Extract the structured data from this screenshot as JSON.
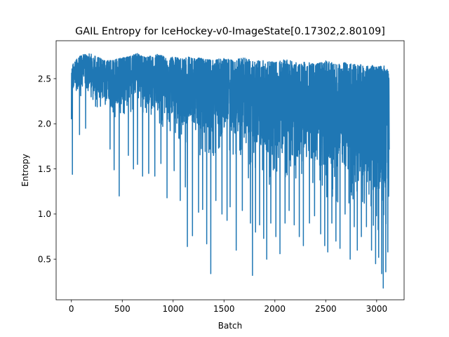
{
  "chart_data": {
    "type": "line",
    "title": "GAIL Entropy for IceHockey-v0-ImageState[0.17302,2.80109]",
    "xlabel": "Batch",
    "ylabel": "Entropy",
    "xlim": [
      -150,
      3270
    ],
    "ylim": [
      0.05,
      2.92
    ],
    "xticks": [
      0,
      500,
      1000,
      1500,
      2000,
      2500,
      3000
    ],
    "xtick_labels": [
      "0",
      "500",
      "1000",
      "1500",
      "2000",
      "2500",
      "3000"
    ],
    "yticks": [
      0.5,
      1.0,
      1.5,
      2.0,
      2.5
    ],
    "ytick_labels": [
      "0.5",
      "1.0",
      "1.5",
      "2.0",
      "2.5"
    ],
    "grid": false,
    "legend": "none",
    "n_points": 3125,
    "series": [
      {
        "color": "#1f77b4",
        "anchors_x": [
          0,
          10,
          50,
          100,
          150,
          200,
          250,
          300,
          350,
          400,
          450,
          500,
          550,
          600,
          650,
          700,
          750,
          800,
          850,
          900,
          950,
          1000,
          1050,
          1100,
          1150,
          1200,
          1250,
          1300,
          1350,
          1400,
          1450,
          1500,
          1550,
          1600,
          1650,
          1700,
          1750,
          1800,
          1850,
          1900,
          1950,
          2000,
          2050,
          2100,
          2150,
          2200,
          2250,
          2300,
          2350,
          2400,
          2450,
          2500,
          2550,
          2600,
          2650,
          2700,
          2750,
          2800,
          2850,
          2900,
          2950,
          3000,
          3050,
          3100,
          3124
        ],
        "anchors_upper": [
          2.55,
          2.65,
          2.72,
          2.76,
          2.78,
          2.77,
          2.74,
          2.72,
          2.7,
          2.7,
          2.72,
          2.73,
          2.74,
          2.76,
          2.78,
          2.75,
          2.74,
          2.76,
          2.77,
          2.75,
          2.73,
          2.74,
          2.73,
          2.72,
          2.74,
          2.72,
          2.73,
          2.72,
          2.71,
          2.7,
          2.72,
          2.73,
          2.72,
          2.7,
          2.72,
          2.73,
          2.71,
          2.69,
          2.7,
          2.7,
          2.69,
          2.68,
          2.7,
          2.71,
          2.7,
          2.68,
          2.67,
          2.69,
          2.68,
          2.66,
          2.68,
          2.7,
          2.68,
          2.66,
          2.67,
          2.68,
          2.67,
          2.65,
          2.66,
          2.64,
          2.65,
          2.63,
          2.64,
          2.64,
          2.62
        ],
        "anchors_lower": [
          2.15,
          2.3,
          2.3,
          2.28,
          2.25,
          2.2,
          2.15,
          2.1,
          2.05,
          2.0,
          2.05,
          2.08,
          2.1,
          2.12,
          2.1,
          2.08,
          2.05,
          2.0,
          1.98,
          1.95,
          1.9,
          1.85,
          1.8,
          1.75,
          1.72,
          1.68,
          1.65,
          1.62,
          1.6,
          1.62,
          1.65,
          1.7,
          1.68,
          1.62,
          1.6,
          1.55,
          1.5,
          1.45,
          1.4,
          1.35,
          1.3,
          1.3,
          1.35,
          1.32,
          1.28,
          1.25,
          1.2,
          1.22,
          1.25,
          1.2,
          1.15,
          1.18,
          1.15,
          1.12,
          1.1,
          1.08,
          1.1,
          1.05,
          1.0,
          0.95,
          0.9,
          0.8,
          0.75,
          0.8,
          0.95
        ],
        "spikes": [
          [
            10,
            1.44
          ],
          [
            80,
            1.88
          ],
          [
            140,
            1.95
          ],
          [
            380,
            1.72
          ],
          [
            420,
            1.49
          ],
          [
            470,
            1.2
          ],
          [
            560,
            1.65
          ],
          [
            610,
            1.5
          ],
          [
            650,
            1.55
          ],
          [
            700,
            1.42
          ],
          [
            760,
            1.45
          ],
          [
            820,
            1.42
          ],
          [
            880,
            1.56
          ],
          [
            940,
            1.18
          ],
          [
            1010,
            1.48
          ],
          [
            1070,
            1.15
          ],
          [
            1120,
            1.3
          ],
          [
            1140,
            0.64
          ],
          [
            1190,
            0.76
          ],
          [
            1250,
            1.02
          ],
          [
            1290,
            1.05
          ],
          [
            1330,
            0.67
          ],
          [
            1370,
            0.34
          ],
          [
            1420,
            1.15
          ],
          [
            1480,
            1.0
          ],
          [
            1530,
            0.93
          ],
          [
            1560,
            1.08
          ],
          [
            1620,
            0.6
          ],
          [
            1680,
            1.04
          ],
          [
            1740,
            1.4
          ],
          [
            1760,
            0.9
          ],
          [
            1780,
            0.32
          ],
          [
            1810,
            0.8
          ],
          [
            1850,
            0.88
          ],
          [
            1890,
            0.73
          ],
          [
            1920,
            0.5
          ],
          [
            1960,
            0.9
          ],
          [
            2010,
            0.75
          ],
          [
            2050,
            0.56
          ],
          [
            2100,
            0.9
          ],
          [
            2140,
            1.04
          ],
          [
            2190,
            0.88
          ],
          [
            2240,
            0.75
          ],
          [
            2280,
            0.65
          ],
          [
            2340,
            0.9
          ],
          [
            2390,
            0.98
          ],
          [
            2450,
            0.78
          ],
          [
            2490,
            0.65
          ],
          [
            2520,
            0.58
          ],
          [
            2560,
            0.9
          ],
          [
            2600,
            0.7
          ],
          [
            2640,
            0.62
          ],
          [
            2690,
            1.0
          ],
          [
            2740,
            0.5
          ],
          [
            2780,
            0.86
          ],
          [
            2810,
            0.6
          ],
          [
            2850,
            0.75
          ],
          [
            2900,
            0.86
          ],
          [
            2950,
            0.6
          ],
          [
            2990,
            0.45
          ],
          [
            3020,
            0.52
          ],
          [
            3050,
            0.34
          ],
          [
            3065,
            0.18
          ],
          [
            3090,
            0.36
          ],
          [
            3110,
            0.58
          ]
        ]
      }
    ]
  }
}
